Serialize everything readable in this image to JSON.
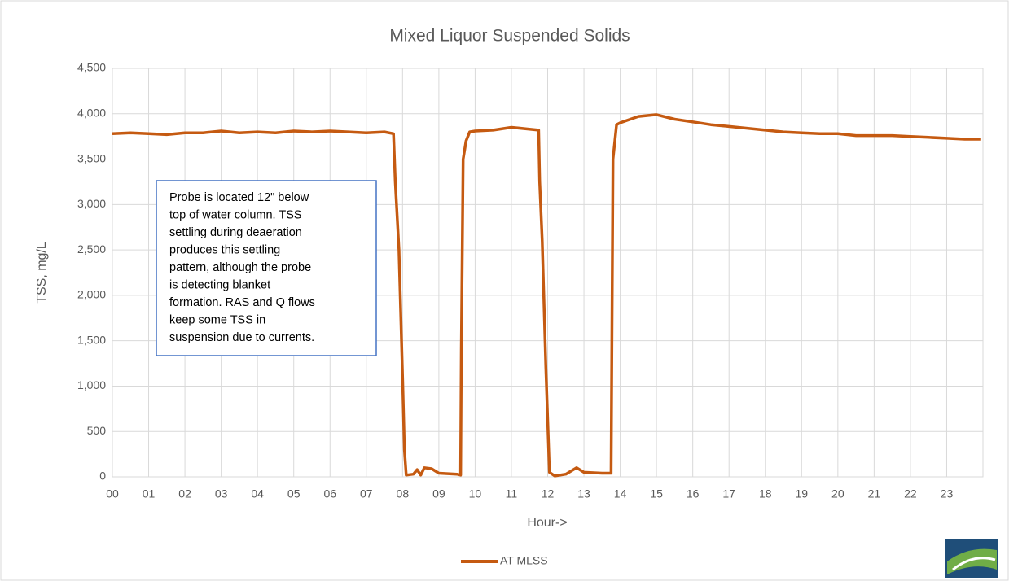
{
  "chart_data": {
    "type": "line",
    "title": "Mixed Liquor Suspended Solids",
    "xlabel": "Hour->",
    "ylabel": "TSS, mg/L",
    "annotation": [
      "Probe is located 12\" below",
      "top of water column.  TSS",
      "settling during deaeration",
      "produces this settling",
      "pattern, although the probe",
      "is detecting blanket",
      "formation.  RAS and Q flows",
      "keep some TSS in",
      "suspension due to currents."
    ],
    "x": [
      0,
      0.5,
      1,
      1.5,
      2,
      2.5,
      3,
      3.5,
      4,
      4.5,
      5,
      5.5,
      6,
      6.5,
      7,
      7.5,
      7.75,
      7.8,
      7.9,
      8.0,
      8.05,
      8.1,
      8.3,
      8.4,
      8.5,
      8.6,
      8.8,
      9.0,
      9.5,
      9.6,
      9.62,
      9.67,
      9.75,
      9.85,
      10,
      10.5,
      11,
      11.5,
      11.75,
      11.78,
      11.85,
      11.95,
      12.05,
      12.2,
      12.5,
      12.8,
      13,
      13.5,
      13.75,
      13.8,
      13.9,
      14,
      14.5,
      15,
      15.5,
      16,
      16.5,
      17,
      17.5,
      18,
      18.5,
      19,
      19.5,
      20,
      20.5,
      21,
      21.5,
      22,
      22.5,
      23,
      23.5,
      23.95
    ],
    "series": [
      {
        "name": "AT MLSS",
        "color": "#c55a11",
        "values": [
          3780,
          3790,
          3780,
          3770,
          3790,
          3790,
          3810,
          3790,
          3800,
          3790,
          3810,
          3800,
          3810,
          3800,
          3790,
          3800,
          3780,
          3250,
          2500,
          1100,
          300,
          20,
          30,
          80,
          20,
          100,
          90,
          40,
          30,
          20,
          1400,
          3500,
          3700,
          3800,
          3810,
          3820,
          3850,
          3830,
          3820,
          3250,
          2600,
          1200,
          50,
          10,
          30,
          100,
          50,
          40,
          40,
          3500,
          3880,
          3900,
          3970,
          3990,
          3940,
          3910,
          3880,
          3860,
          3840,
          3820,
          3800,
          3790,
          3780,
          3780,
          3760,
          3760,
          3760,
          3750,
          3740,
          3730,
          3720,
          3720
        ]
      }
    ],
    "xlim": [
      0,
      24
    ],
    "xticks": [
      {
        "value": 0,
        "label": "00"
      },
      {
        "value": 1,
        "label": "01"
      },
      {
        "value": 2,
        "label": "02"
      },
      {
        "value": 3,
        "label": "03"
      },
      {
        "value": 4,
        "label": "04"
      },
      {
        "value": 5,
        "label": "05"
      },
      {
        "value": 6,
        "label": "06"
      },
      {
        "value": 7,
        "label": "07"
      },
      {
        "value": 8,
        "label": "08"
      },
      {
        "value": 9,
        "label": "09"
      },
      10,
      11,
      12,
      13,
      14,
      15,
      16,
      17,
      18,
      19,
      20,
      21,
      22,
      23
    ],
    "ylim": [
      0,
      4500
    ],
    "yticks": [
      0,
      500,
      {
        "value": 1000,
        "label": "1,000"
      },
      {
        "value": 1500,
        "label": "1,500"
      },
      {
        "value": 2000,
        "label": "2,000"
      },
      {
        "value": 2500,
        "label": "2,500"
      },
      {
        "value": 3000,
        "label": "3,000"
      },
      {
        "value": 3500,
        "label": "3,500"
      },
      {
        "value": 4000,
        "label": "4,000"
      },
      {
        "value": 4500,
        "label": "4,500"
      }
    ],
    "grid": true,
    "legend": "bottom"
  }
}
